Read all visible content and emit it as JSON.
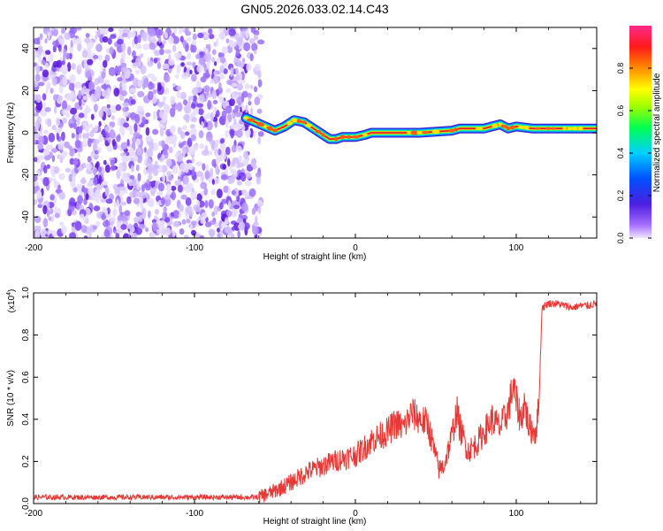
{
  "title": "GN05.2026.033.02.14.C43",
  "colors": {
    "snr_line": "#e53935",
    "track_core": "#e01e3c",
    "noise_purple": "#6a1fd6"
  },
  "chart_data": [
    {
      "type": "heatmap",
      "title": "GN05.2026.033.02.14.C43",
      "xlabel": "Height of straight line (km)",
      "ylabel": "Frequency (Hz)",
      "xlim": [
        -200,
        150
      ],
      "ylim": [
        -50,
        50
      ],
      "x_ticks": [
        -200,
        -100,
        0,
        100
      ],
      "y_ticks": [
        -40,
        -20,
        0,
        20,
        40
      ],
      "colorbar": {
        "label": "Normalized spectral amplitude",
        "range": [
          0,
          1
        ],
        "ticks": [
          0.0,
          0.2,
          0.4,
          0.6,
          0.8
        ],
        "colormap": "rainbow (purple-blue-cyan-green-yellow-orange-red-magenta)"
      },
      "noise_region_x": [
        -200,
        -57
      ],
      "track": {
        "x": [
          -68,
          -62,
          -56,
          -50,
          -44,
          -38,
          -32,
          -26,
          -20,
          -16,
          -12,
          -8,
          -4,
          0,
          6,
          10,
          20,
          40,
          60,
          65,
          80,
          90,
          95,
          100,
          110,
          150
        ],
        "y": [
          7,
          5,
          3,
          1,
          3,
          6,
          5,
          2,
          -1,
          -3,
          -3,
          -2,
          -2,
          -2,
          -1,
          0,
          0,
          0,
          1,
          2,
          2,
          4,
          2,
          3,
          2,
          2
        ]
      }
    },
    {
      "type": "line",
      "xlabel": "Height of straight line (km)",
      "ylabel": "SNR (10 * v/v)",
      "y_multiplier": "(x10",
      "y_multiplier_exp": "4",
      "xlim": [
        -200,
        150
      ],
      "ylim": [
        0,
        1.0
      ],
      "x_ticks": [
        -200,
        -100,
        0,
        100
      ],
      "y_ticks": [
        0.0,
        0.2,
        0.4,
        0.6,
        0.8,
        1.0
      ],
      "series": [
        {
          "x": [
            -200,
            -180,
            -160,
            -140,
            -120,
            -100,
            -80,
            -70,
            -60,
            -50,
            -40,
            -30,
            -20,
            -10,
            0,
            5,
            10,
            20,
            25,
            30,
            35,
            40,
            45,
            50,
            52,
            55,
            60,
            63,
            65,
            70,
            75,
            80,
            85,
            90,
            95,
            98,
            100,
            103,
            105,
            108,
            112,
            114,
            116,
            120,
            125,
            130,
            135,
            140,
            145,
            150
          ],
          "values": [
            0.03,
            0.03,
            0.03,
            0.03,
            0.03,
            0.03,
            0.03,
            0.03,
            0.03,
            0.06,
            0.1,
            0.15,
            0.18,
            0.21,
            0.23,
            0.26,
            0.3,
            0.34,
            0.38,
            0.36,
            0.43,
            0.4,
            0.38,
            0.22,
            0.16,
            0.18,
            0.32,
            0.44,
            0.36,
            0.25,
            0.28,
            0.34,
            0.4,
            0.36,
            0.44,
            0.56,
            0.48,
            0.4,
            0.48,
            0.36,
            0.34,
            0.45,
            0.93,
            0.95,
            0.95,
            0.94,
            0.93,
            0.94,
            0.94,
            0.95
          ]
        }
      ]
    }
  ]
}
